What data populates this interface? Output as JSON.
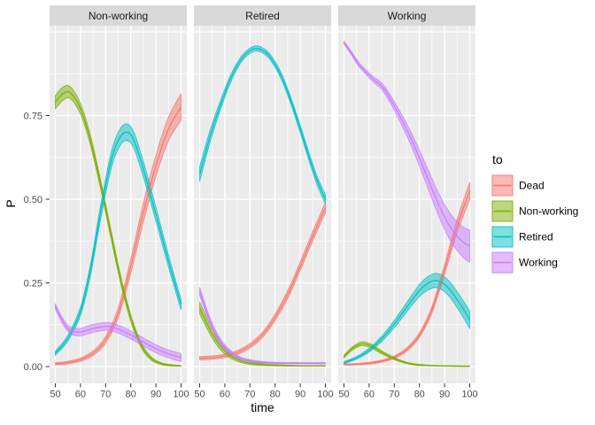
{
  "chart_data": {
    "type": "line",
    "variant": "faceted-ribbon-line-ggplot",
    "title": "",
    "xlabel": "time",
    "ylabel": "P",
    "legend_title": "to",
    "legend_position": "right",
    "grid": "white major and minor gridlines on grey panel",
    "x_ticks": [
      "50",
      "60",
      "70",
      "80",
      "90",
      "100"
    ],
    "y_ticks": [
      "0.00",
      "0.25",
      "0.50",
      "0.75"
    ],
    "x_range": [
      50,
      100
    ],
    "y_range": [
      0,
      1
    ],
    "theme": {
      "panel_bg": "#EBEBEB",
      "strip_bg": "#D9D9D9",
      "grid_color": "#FFFFFF",
      "tick_text_color": "#4D4D4D",
      "strip_text_color": "#1A1A1A",
      "tick_mark_color": "#333333",
      "fill_opacity": 0.5
    },
    "legend": [
      {
        "id": "dead",
        "label": "Dead",
        "color": "#F8766D"
      },
      {
        "id": "nonworking",
        "label": "Non-working",
        "color": "#7CAE00"
      },
      {
        "id": "retired",
        "label": "Retired",
        "color": "#00BFC4"
      },
      {
        "id": "working",
        "label": "Working",
        "color": "#C77CFF"
      }
    ],
    "facets": [
      {
        "label": "Non-working",
        "series": [
          {
            "id": "dead",
            "points": [
              [
                50,
                0.008,
                0.003
              ],
              [
                55,
                0.012,
                0.004
              ],
              [
                60,
                0.021,
                0.005
              ],
              [
                65,
                0.04,
                0.007
              ],
              [
                70,
                0.08,
                0.01
              ],
              [
                75,
                0.16,
                0.015
              ],
              [
                80,
                0.3,
                0.022
              ],
              [
                85,
                0.46,
                0.028
              ],
              [
                90,
                0.6,
                0.032
              ],
              [
                95,
                0.71,
                0.035
              ],
              [
                100,
                0.775,
                0.04
              ]
            ]
          },
          {
            "id": "nonworking",
            "points": [
              [
                50,
                0.79,
                0.02
              ],
              [
                53,
                0.815,
                0.02
              ],
              [
                56,
                0.818,
                0.018
              ],
              [
                60,
                0.77,
                0.016
              ],
              [
                64,
                0.675,
                0.015
              ],
              [
                68,
                0.545,
                0.014
              ],
              [
                72,
                0.4,
                0.013
              ],
              [
                76,
                0.26,
                0.012
              ],
              [
                80,
                0.145,
                0.01
              ],
              [
                84,
                0.066,
                0.008
              ],
              [
                88,
                0.025,
                0.005
              ],
              [
                92,
                0.009,
                0.003
              ],
              [
                96,
                0.004,
                0.002
              ],
              [
                100,
                0.002,
                0.001
              ]
            ]
          },
          {
            "id": "retired",
            "points": [
              [
                50,
                0.04,
                0.006
              ],
              [
                55,
                0.085,
                0.009
              ],
              [
                60,
                0.165,
                0.013
              ],
              [
                64,
                0.29,
                0.017
              ],
              [
                68,
                0.46,
                0.021
              ],
              [
                72,
                0.61,
                0.024
              ],
              [
                75,
                0.675,
                0.025
              ],
              [
                78,
                0.7,
                0.025
              ],
              [
                81,
                0.68,
                0.024
              ],
              [
                85,
                0.59,
                0.023
              ],
              [
                90,
                0.455,
                0.021
              ],
              [
                95,
                0.315,
                0.018
              ],
              [
                100,
                0.185,
                0.015
              ]
            ]
          },
          {
            "id": "working",
            "points": [
              [
                50,
                0.18,
                0.008
              ],
              [
                53,
                0.135,
                0.009
              ],
              [
                56,
                0.108,
                0.01
              ],
              [
                60,
                0.103,
                0.011
              ],
              [
                64,
                0.112,
                0.012
              ],
              [
                68,
                0.118,
                0.012
              ],
              [
                71,
                0.12,
                0.012
              ],
              [
                75,
                0.112,
                0.012
              ],
              [
                79,
                0.098,
                0.012
              ],
              [
                83,
                0.082,
                0.012
              ],
              [
                87,
                0.065,
                0.012
              ],
              [
                91,
                0.05,
                0.012
              ],
              [
                95,
                0.038,
                0.012
              ],
              [
                100,
                0.027,
                0.012
              ]
            ]
          }
        ]
      },
      {
        "label": "Retired",
        "series": [
          {
            "id": "dead",
            "points": [
              [
                50,
                0.025,
                0.005
              ],
              [
                55,
                0.027,
                0.005
              ],
              [
                60,
                0.032,
                0.005
              ],
              [
                65,
                0.042,
                0.006
              ],
              [
                70,
                0.062,
                0.007
              ],
              [
                75,
                0.095,
                0.008
              ],
              [
                80,
                0.147,
                0.01
              ],
              [
                85,
                0.215,
                0.012
              ],
              [
                90,
                0.3,
                0.013
              ],
              [
                95,
                0.39,
                0.014
              ],
              [
                100,
                0.475,
                0.016
              ]
            ]
          },
          {
            "id": "nonworking",
            "points": [
              [
                50,
                0.175,
                0.018
              ],
              [
                54,
                0.112,
                0.014
              ],
              [
                58,
                0.063,
                0.011
              ],
              [
                62,
                0.034,
                0.008
              ],
              [
                66,
                0.018,
                0.005
              ],
              [
                70,
                0.01,
                0.004
              ],
              [
                75,
                0.006,
                0.003
              ],
              [
                80,
                0.004,
                0.002
              ],
              [
                90,
                0.002,
                0.001
              ],
              [
                100,
                0.002,
                0.001
              ]
            ]
          },
          {
            "id": "retired",
            "points": [
              [
                50,
                0.575,
                0.022
              ],
              [
                54,
                0.685,
                0.018
              ],
              [
                58,
                0.775,
                0.014
              ],
              [
                62,
                0.855,
                0.011
              ],
              [
                66,
                0.912,
                0.009
              ],
              [
                69,
                0.938,
                0.008
              ],
              [
                72,
                0.95,
                0.008
              ],
              [
                75,
                0.945,
                0.008
              ],
              [
                78,
                0.925,
                0.008
              ],
              [
                82,
                0.875,
                0.009
              ],
              [
                86,
                0.8,
                0.01
              ],
              [
                90,
                0.71,
                0.011
              ],
              [
                94,
                0.615,
                0.012
              ],
              [
                97,
                0.55,
                0.013
              ],
              [
                100,
                0.5,
                0.014
              ]
            ]
          },
          {
            "id": "working",
            "points": [
              [
                50,
                0.225,
                0.012
              ],
              [
                54,
                0.138,
                0.01
              ],
              [
                58,
                0.078,
                0.008
              ],
              [
                62,
                0.044,
                0.006
              ],
              [
                66,
                0.026,
                0.004
              ],
              [
                70,
                0.018,
                0.003
              ],
              [
                75,
                0.013,
                0.002
              ],
              [
                80,
                0.011,
                0.002
              ],
              [
                90,
                0.01,
                0.002
              ],
              [
                100,
                0.01,
                0.002
              ]
            ]
          }
        ]
      },
      {
        "label": "Working",
        "series": [
          {
            "id": "dead",
            "points": [
              [
                50,
                0.006,
                0.002
              ],
              [
                55,
                0.007,
                0.002
              ],
              [
                60,
                0.01,
                0.003
              ],
              [
                65,
                0.016,
                0.003
              ],
              [
                70,
                0.028,
                0.004
              ],
              [
                75,
                0.051,
                0.005
              ],
              [
                80,
                0.094,
                0.007
              ],
              [
                85,
                0.17,
                0.01
              ],
              [
                90,
                0.29,
                0.015
              ],
              [
                95,
                0.42,
                0.02
              ],
              [
                100,
                0.525,
                0.026
              ]
            ]
          },
          {
            "id": "nonworking",
            "points": [
              [
                50,
                0.03,
                0.004
              ],
              [
                53,
                0.052,
                0.005
              ],
              [
                56,
                0.066,
                0.006
              ],
              [
                58,
                0.068,
                0.006
              ],
              [
                61,
                0.061,
                0.006
              ],
              [
                64,
                0.047,
                0.005
              ],
              [
                68,
                0.031,
                0.004
              ],
              [
                72,
                0.018,
                0.003
              ],
              [
                76,
                0.009,
                0.002
              ],
              [
                80,
                0.005,
                0.002
              ],
              [
                85,
                0.003,
                0.001
              ],
              [
                90,
                0.002,
                0.001
              ],
              [
                100,
                0.001,
                0.001
              ]
            ]
          },
          {
            "id": "retired",
            "points": [
              [
                50,
                0.012,
                0.003
              ],
              [
                55,
                0.026,
                0.004
              ],
              [
                60,
                0.049,
                0.006
              ],
              [
                65,
                0.083,
                0.008
              ],
              [
                70,
                0.127,
                0.011
              ],
              [
                75,
                0.178,
                0.014
              ],
              [
                80,
                0.227,
                0.018
              ],
              [
                83,
                0.247,
                0.02
              ],
              [
                86,
                0.257,
                0.021
              ],
              [
                89,
                0.251,
                0.022
              ],
              [
                92,
                0.231,
                0.023
              ],
              [
                95,
                0.2,
                0.024
              ],
              [
                98,
                0.165,
                0.025
              ],
              [
                100,
                0.14,
                0.026
              ]
            ]
          },
          {
            "id": "working",
            "points": [
              [
                50,
                0.968,
                0.004
              ],
              [
                53,
                0.936,
                0.005
              ],
              [
                56,
                0.902,
                0.006
              ],
              [
                59,
                0.878,
                0.007
              ],
              [
                62,
                0.856,
                0.008
              ],
              [
                65,
                0.838,
                0.01
              ],
              [
                68,
                0.805,
                0.012
              ],
              [
                71,
                0.765,
                0.014
              ],
              [
                74,
                0.722,
                0.017
              ],
              [
                77,
                0.675,
                0.02
              ],
              [
                80,
                0.623,
                0.024
              ],
              [
                83,
                0.568,
                0.028
              ],
              [
                86,
                0.513,
                0.032
              ],
              [
                89,
                0.462,
                0.036
              ],
              [
                92,
                0.42,
                0.04
              ],
              [
                95,
                0.39,
                0.043
              ],
              [
                98,
                0.368,
                0.046
              ],
              [
                100,
                0.36,
                0.048
              ]
            ]
          }
        ]
      }
    ]
  }
}
